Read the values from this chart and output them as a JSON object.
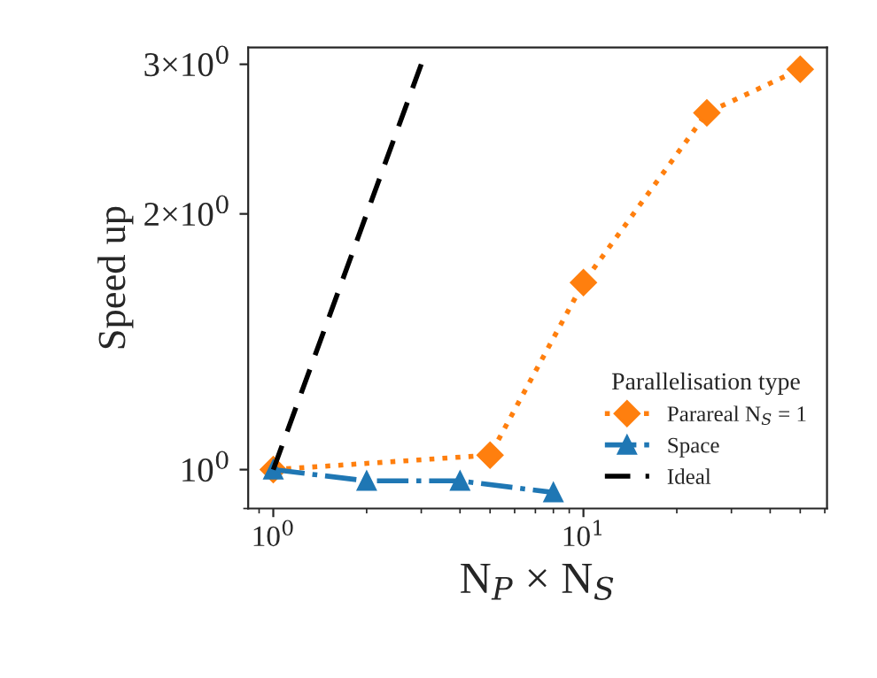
{
  "chart_data": {
    "type": "line",
    "xlabel": "N$_{P}$ × N$_{S}$",
    "ylabel": "Speed up",
    "legend_title": "Parallelisation type",
    "legend": "bottom right",
    "log": "xy",
    "grid": false,
    "xlim": [
      0.83,
      61
    ],
    "ylim": [
      0.9,
      3.14
    ],
    "xticks": [
      {
        "value": 1,
        "label": "10$^{0}$"
      },
      {
        "value": 10,
        "label": "10$^{1}$"
      }
    ],
    "yticks": [
      {
        "value": 1,
        "label": "10$^{0}$"
      },
      {
        "value": 2,
        "label": "2×10$^{0}$"
      },
      {
        "value": 3,
        "label": "3×10$^{0}$"
      }
    ],
    "series": [
      {
        "name": "Parareal N$_{S}$ = 1",
        "color": "#ff7f0e",
        "marker": "diamond",
        "line_style": "dotted",
        "x": [
          1,
          5,
          10,
          25,
          50
        ],
        "values": [
          1.0,
          1.04,
          1.66,
          2.63,
          2.96
        ]
      },
      {
        "name": "Space",
        "color": "#1f77b4",
        "marker": "triangle",
        "line_style": "dashdot",
        "x": [
          1,
          2,
          4,
          8
        ],
        "values": [
          1.0,
          0.97,
          0.97,
          0.94
        ]
      },
      {
        "name": "Ideal",
        "color": "#000000",
        "marker": "none",
        "line_style": "dashed",
        "x": [
          1,
          3
        ],
        "values": [
          1,
          3
        ]
      }
    ]
  }
}
